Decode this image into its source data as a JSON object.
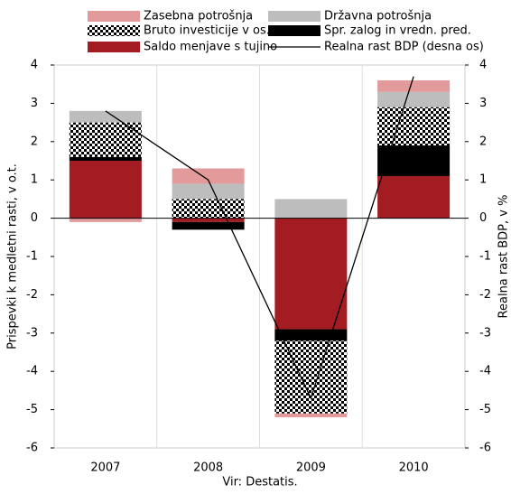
{
  "chart_data": {
    "type": "bar",
    "stacked": true,
    "categories": [
      "2007",
      "2008",
      "2009",
      "2010"
    ],
    "series": [
      {
        "name": "Saldo menjave s tujino",
        "color": "#a31c22",
        "values": [
          1.5,
          -0.1,
          -2.9,
          1.1
        ]
      },
      {
        "name": "Spr. zalog in vredn. pred.",
        "color": "#000000",
        "values": [
          0.1,
          -0.2,
          -0.3,
          0.8
        ]
      },
      {
        "name": "Bruto investicije v os. sr.",
        "color": "#000000",
        "pattern": "checker",
        "values": [
          0.9,
          0.5,
          -1.9,
          1.0
        ]
      },
      {
        "name": "Državna potrošnja",
        "color": "#bdbdbd",
        "values": [
          0.3,
          0.4,
          0.5,
          0.4
        ]
      },
      {
        "name": "Zasebna potrošnja",
        "color": "#e39a9a",
        "values": [
          -0.1,
          0.4,
          -0.1,
          0.3
        ]
      },
      {
        "name": "Realna rast BDP (desna os)",
        "type": "line",
        "axis": "y2",
        "color": "#000000",
        "values": [
          2.8,
          1.0,
          -4.7,
          3.7
        ]
      }
    ],
    "ylabel": "Prispevki k medletni rasti, v o.t.",
    "y2label": "Realna rast BDP, v %",
    "xlabel": "Vir: Destatis.",
    "ylim": [
      -6,
      4
    ],
    "yticks": [
      -6,
      -5,
      -4,
      -3,
      -2,
      -1,
      0,
      1,
      2,
      3,
      4
    ],
    "y2lim": [
      -6,
      4
    ],
    "y2ticks": [
      -6,
      -5,
      -4,
      -3,
      -2,
      -1,
      0,
      1,
      2,
      3,
      4
    ],
    "grid": true
  }
}
